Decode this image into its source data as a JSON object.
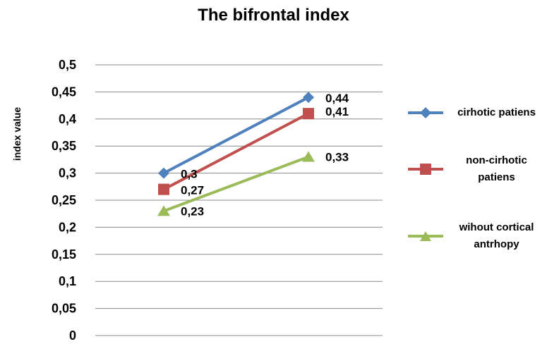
{
  "chart_data": {
    "type": "line",
    "title": "The bifrontal index",
    "xlabel": "",
    "ylabel": "index value",
    "ylim": [
      0,
      0.5
    ],
    "yticks": [
      "0",
      "0,05",
      "0,1",
      "0,15",
      "0,2",
      "0,25",
      "0,3",
      "0,35",
      "0,4",
      "0,45",
      "0,5"
    ],
    "categories": [
      "",
      ""
    ],
    "grid": true,
    "legend_position": "right",
    "series": [
      {
        "name": "cirhotic patiens",
        "values": [
          0.3,
          0.44
        ],
        "labels": [
          "0,3",
          "0,44"
        ],
        "color": "#4F81BD",
        "marker": "diamond"
      },
      {
        "name": "non-cirhotic patiens",
        "values": [
          0.27,
          0.41
        ],
        "labels": [
          "0,27",
          "0,41"
        ],
        "color": "#C0504D",
        "marker": "square"
      },
      {
        "name": "wihout cortical antrhopy",
        "values": [
          0.23,
          0.33
        ],
        "labels": [
          "0,23",
          "0,33"
        ],
        "color": "#9BBB59",
        "marker": "triangle"
      }
    ]
  }
}
